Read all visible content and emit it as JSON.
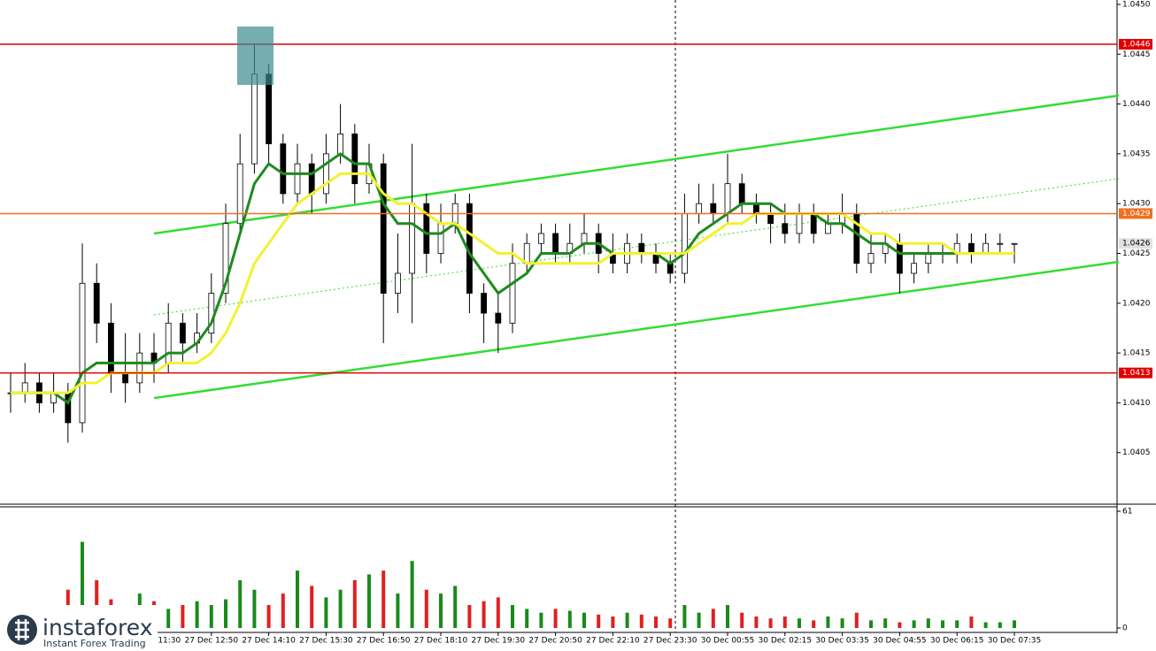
{
  "chart_data": [
    {
      "type": "candlestick",
      "open": [
        1.0411,
        1.0411,
        1.0412,
        1.041,
        1.0411,
        1.0408,
        1.0422,
        1.0418,
        1.0413,
        1.0412,
        1.0415,
        1.0414,
        1.0418,
        1.0416,
        1.0417,
        1.0421,
        1.0428,
        1.0434,
        1.0443,
        1.0436,
        1.0431,
        1.0434,
        1.0431,
        1.0435,
        1.0437,
        1.0432,
        1.0434,
        1.0421,
        1.0423,
        1.043,
        1.0425,
        1.0428,
        1.043,
        1.0421,
        1.0419,
        1.0418,
        1.0424,
        1.0426,
        1.0427,
        1.0425,
        1.0426,
        1.0427,
        1.0425,
        1.0424,
        1.0426,
        1.0425,
        1.0424,
        1.0423,
        1.0429,
        1.043,
        1.0429,
        1.0432,
        1.043,
        1.0429,
        1.0428,
        1.0427,
        1.0429,
        1.0427,
        1.0428,
        1.0429,
        1.0424,
        1.0425,
        1.0426,
        1.0423,
        1.0424,
        1.0425,
        1.0425,
        1.0426,
        1.0425,
        1.0426,
        1.0426
      ],
      "high": [
        1.0413,
        1.0414,
        1.0413,
        1.0413,
        1.0412,
        1.0426,
        1.0424,
        1.042,
        1.0417,
        1.0417,
        1.0417,
        1.042,
        1.0419,
        1.0419,
        1.0423,
        1.043,
        1.0437,
        1.0446,
        1.0444,
        1.0437,
        1.0436,
        1.0435,
        1.0437,
        1.044,
        1.0438,
        1.0436,
        1.0435,
        1.0427,
        1.0436,
        1.0431,
        1.043,
        1.0431,
        1.0431,
        1.0422,
        1.0421,
        1.0426,
        1.0427,
        1.0428,
        1.0428,
        1.0428,
        1.0429,
        1.0428,
        1.0427,
        1.0427,
        1.0427,
        1.0426,
        1.0425,
        1.0431,
        1.0432,
        1.0432,
        1.0435,
        1.0433,
        1.0431,
        1.043,
        1.043,
        1.043,
        1.043,
        1.0429,
        1.0431,
        1.043,
        1.0427,
        1.0427,
        1.0427,
        1.0425,
        1.0426,
        1.0426,
        1.0427,
        1.0427,
        1.0427,
        1.0427,
        1.0426
      ],
      "low": [
        1.0409,
        1.041,
        1.0409,
        1.0409,
        1.0406,
        1.0407,
        1.0416,
        1.0411,
        1.041,
        1.0411,
        1.0412,
        1.0413,
        1.0414,
        1.0415,
        1.0416,
        1.042,
        1.0427,
        1.0433,
        1.0434,
        1.043,
        1.043,
        1.0429,
        1.043,
        1.0434,
        1.043,
        1.0431,
        1.0416,
        1.0419,
        1.0418,
        1.0423,
        1.0424,
        1.0427,
        1.0419,
        1.0416,
        1.0415,
        1.0417,
        1.0423,
        1.0425,
        1.0424,
        1.0424,
        1.0425,
        1.0423,
        1.0423,
        1.0423,
        1.0424,
        1.0423,
        1.0422,
        1.0422,
        1.0428,
        1.0428,
        1.0428,
        1.0429,
        1.0428,
        1.0426,
        1.0426,
        1.0426,
        1.0426,
        1.0427,
        1.0427,
        1.0423,
        1.0423,
        1.0424,
        1.0421,
        1.0422,
        1.0423,
        1.0424,
        1.0424,
        1.0424,
        1.0425,
        1.0425,
        1.0424
      ],
      "close": [
        1.0411,
        1.0412,
        1.041,
        1.0411,
        1.0408,
        1.0422,
        1.0418,
        1.0413,
        1.0412,
        1.0415,
        1.0414,
        1.0418,
        1.0416,
        1.0417,
        1.0421,
        1.0428,
        1.0434,
        1.0443,
        1.0436,
        1.0431,
        1.0434,
        1.0431,
        1.0435,
        1.0437,
        1.0432,
        1.0434,
        1.0421,
        1.0423,
        1.043,
        1.0425,
        1.0428,
        1.043,
        1.0421,
        1.0419,
        1.0418,
        1.0424,
        1.0426,
        1.0427,
        1.0425,
        1.0426,
        1.0427,
        1.0425,
        1.0424,
        1.0426,
        1.0425,
        1.0424,
        1.0423,
        1.0429,
        1.043,
        1.0429,
        1.0432,
        1.043,
        1.0429,
        1.0428,
        1.0427,
        1.0429,
        1.0427,
        1.0428,
        1.0429,
        1.0424,
        1.0425,
        1.0426,
        1.0423,
        1.0424,
        1.0425,
        1.0425,
        1.0426,
        1.0425,
        1.0426,
        1.0426,
        1.0426
      ],
      "lines": [
        {
          "color": "#1e8a1e",
          "values": [
            1.0411,
            1.0411,
            1.0411,
            1.0411,
            1.041,
            1.0413,
            1.0414,
            1.0414,
            1.0414,
            1.0414,
            1.0414,
            1.0415,
            1.0415,
            1.0416,
            1.0418,
            1.0422,
            1.0427,
            1.0432,
            1.0434,
            1.0433,
            1.0433,
            1.0433,
            1.0434,
            1.0435,
            1.0434,
            1.0434,
            1.043,
            1.0428,
            1.0428,
            1.0427,
            1.0427,
            1.0428,
            1.0425,
            1.0423,
            1.0421,
            1.0422,
            1.0423,
            1.0425,
            1.0425,
            1.0425,
            1.0426,
            1.0426,
            1.0425,
            1.0425,
            1.0425,
            1.0425,
            1.0424,
            1.0425,
            1.0427,
            1.0428,
            1.0429,
            1.043,
            1.043,
            1.043,
            1.0429,
            1.0429,
            1.0429,
            1.0428,
            1.0428,
            1.0427,
            1.0426,
            1.0426,
            1.0425,
            1.0425,
            1.0425,
            1.0425,
            1.0425,
            1.0425,
            1.0425,
            1.0425,
            1.0425
          ]
        },
        {
          "color": "#f2f230",
          "values": [
            1.0411,
            1.0411,
            1.0411,
            1.0411,
            1.0411,
            1.0412,
            1.0412,
            1.0413,
            1.0413,
            1.0413,
            1.0413,
            1.0414,
            1.0414,
            1.0414,
            1.0415,
            1.0417,
            1.042,
            1.0424,
            1.0426,
            1.0428,
            1.043,
            1.0431,
            1.0432,
            1.0433,
            1.0433,
            1.0433,
            1.0431,
            1.043,
            1.043,
            1.0429,
            1.0428,
            1.0428,
            1.0427,
            1.0426,
            1.0425,
            1.0425,
            1.0424,
            1.0424,
            1.0424,
            1.0424,
            1.0424,
            1.0424,
            1.0425,
            1.0425,
            1.0425,
            1.0425,
            1.0425,
            1.0425,
            1.0426,
            1.0427,
            1.0428,
            1.0428,
            1.0429,
            1.0429,
            1.0429,
            1.0429,
            1.0429,
            1.0429,
            1.0429,
            1.0428,
            1.0427,
            1.0427,
            1.0426,
            1.0426,
            1.0426,
            1.0426,
            1.0425,
            1.0425,
            1.0425,
            1.0425,
            1.0425
          ]
        }
      ],
      "levels": [
        {
          "value": 1.0446,
          "color": "#e00000"
        },
        {
          "value": 1.0429,
          "color": "#f07020"
        },
        {
          "value": 1.0413,
          "color": "#e00000"
        },
        {
          "value": 1.0426,
          "color": "#e0e0e0"
        }
      ],
      "ylim": [
        1.04,
        1.045
      ],
      "yticks": [
        {
          "value": 1.0405,
          "label": "1.0405"
        },
        {
          "value": 1.041,
          "label": "1.0410"
        },
        1.0415,
        {
          "value": 1.042,
          "label": "1.0420"
        },
        1.0425,
        {
          "value": 1.043,
          "label": "1.0430"
        },
        1.0435,
        {
          "value": 1.044,
          "label": "1.0440"
        },
        1.0445,
        {
          "value": 1.045,
          "label": "1.0450"
        }
      ],
      "up_color": "#ffffff",
      "down_color": "#000000"
    },
    {
      "type": "bar",
      "values": [
        5,
        6,
        8,
        10,
        20,
        45,
        25,
        15,
        12,
        18,
        14,
        10,
        12,
        14,
        12,
        15,
        25,
        20,
        12,
        18,
        30,
        22,
        16,
        20,
        25,
        28,
        30,
        18,
        35,
        20,
        18,
        22,
        12,
        14,
        16,
        12,
        10,
        8,
        10,
        9,
        8,
        7,
        6,
        8,
        7,
        6,
        5,
        12,
        8,
        10,
        12,
        8,
        6,
        5,
        6,
        5,
        4,
        6,
        5,
        8,
        4,
        5,
        3,
        4,
        5,
        4,
        4,
        6,
        3,
        3,
        4
      ],
      "categories": [
        null,
        null,
        null,
        null,
        null,
        null,
        null,
        null,
        null,
        null,
        "27 Dec 11:30",
        null,
        null,
        null,
        "27 Dec 12:50",
        null,
        null,
        null,
        "27 Dec 14:10",
        null,
        null,
        null,
        "27 Dec 15:30",
        null,
        null,
        null,
        "27 Dec 16:50",
        null,
        null,
        null,
        "27 Dec 18:10",
        null,
        null,
        null,
        "27 Dec 19:30",
        null,
        null,
        null,
        "27 Dec 20:50",
        null,
        null,
        null,
        "27 Dec 22:10",
        null,
        null,
        null,
        "27 Dec 23:30",
        null,
        null,
        null,
        "30 Dec 00:55",
        null,
        null,
        null,
        "30 Dec 02:15",
        null,
        null,
        null,
        "30 Dec 03:35",
        null,
        null,
        null,
        "30 Dec 04:55",
        null,
        null,
        null,
        "30 Dec 06:15",
        null,
        null,
        null,
        "30 Dec 07:35"
      ],
      "ylim": [
        0,
        61
      ],
      "yticks": [
        0,
        61
      ],
      "up_color": "#1a8a1a",
      "down_color": "#e02020"
    }
  ],
  "brand": {
    "name": "instaforex",
    "tagline": "Instant Forex Trading"
  }
}
